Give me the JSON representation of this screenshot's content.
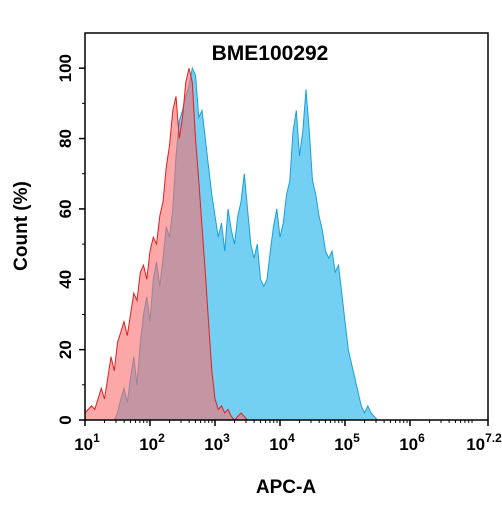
{
  "chart_data": {
    "type": "area",
    "title": "BME100292",
    "xlabel": "APC-A",
    "ylabel": "Count  (%)",
    "x_scale": "log10",
    "xlim": [
      1,
      7.2
    ],
    "ylim": [
      0,
      110
    ],
    "x_ticks": [
      {
        "value": 1,
        "base": "10",
        "exp": "1"
      },
      {
        "value": 2,
        "base": "10",
        "exp": "2"
      },
      {
        "value": 3,
        "base": "10",
        "exp": "3"
      },
      {
        "value": 4,
        "base": "10",
        "exp": "4"
      },
      {
        "value": 5,
        "base": "10",
        "exp": "5"
      },
      {
        "value": 6,
        "base": "10",
        "exp": "6"
      },
      {
        "value": 7.2,
        "base": "10",
        "exp": "7.2"
      }
    ],
    "y_ticks": [
      "0",
      "20",
      "40",
      "60",
      "80",
      "100"
    ],
    "grid": false,
    "legend": "none",
    "series": [
      {
        "color": "#5bc8f0",
        "edge": "#1aa0d8",
        "points": [
          [
            1.45,
            0
          ],
          [
            1.5,
            2
          ],
          [
            1.55,
            6
          ],
          [
            1.6,
            9
          ],
          [
            1.65,
            5
          ],
          [
            1.7,
            12
          ],
          [
            1.75,
            18
          ],
          [
            1.8,
            10
          ],
          [
            1.85,
            22
          ],
          [
            1.9,
            30
          ],
          [
            1.95,
            35
          ],
          [
            2.0,
            28
          ],
          [
            2.05,
            40
          ],
          [
            2.1,
            45
          ],
          [
            2.15,
            38
          ],
          [
            2.2,
            46
          ],
          [
            2.25,
            55
          ],
          [
            2.3,
            52
          ],
          [
            2.35,
            60
          ],
          [
            2.4,
            75
          ],
          [
            2.45,
            85
          ],
          [
            2.5,
            88
          ],
          [
            2.55,
            92
          ],
          [
            2.6,
            95
          ],
          [
            2.65,
            100
          ],
          [
            2.7,
            98
          ],
          [
            2.75,
            86
          ],
          [
            2.8,
            88
          ],
          [
            2.85,
            80
          ],
          [
            2.9,
            72
          ],
          [
            2.95,
            64
          ],
          [
            3.0,
            58
          ],
          [
            3.05,
            52
          ],
          [
            3.1,
            56
          ],
          [
            3.15,
            48
          ],
          [
            3.2,
            60
          ],
          [
            3.25,
            54
          ],
          [
            3.3,
            50
          ],
          [
            3.35,
            58
          ],
          [
            3.4,
            62
          ],
          [
            3.45,
            70
          ],
          [
            3.5,
            60
          ],
          [
            3.55,
            50
          ],
          [
            3.6,
            46
          ],
          [
            3.65,
            50
          ],
          [
            3.7,
            40
          ],
          [
            3.75,
            38
          ],
          [
            3.8,
            40
          ],
          [
            3.85,
            48
          ],
          [
            3.9,
            55
          ],
          [
            3.95,
            60
          ],
          [
            4.0,
            52
          ],
          [
            4.05,
            56
          ],
          [
            4.1,
            64
          ],
          [
            4.15,
            68
          ],
          [
            4.2,
            82
          ],
          [
            4.25,
            88
          ],
          [
            4.3,
            75
          ],
          [
            4.35,
            82
          ],
          [
            4.4,
            94
          ],
          [
            4.45,
            82
          ],
          [
            4.5,
            68
          ],
          [
            4.55,
            64
          ],
          [
            4.6,
            58
          ],
          [
            4.65,
            54
          ],
          [
            4.7,
            48
          ],
          [
            4.75,
            46
          ],
          [
            4.8,
            48
          ],
          [
            4.85,
            42
          ],
          [
            4.9,
            44
          ],
          [
            4.95,
            36
          ],
          [
            5.0,
            28
          ],
          [
            5.05,
            20
          ],
          [
            5.1,
            16
          ],
          [
            5.15,
            12
          ],
          [
            5.2,
            8
          ],
          [
            5.25,
            4
          ],
          [
            5.3,
            2
          ],
          [
            5.35,
            4
          ],
          [
            5.4,
            2
          ],
          [
            5.5,
            0
          ]
        ]
      },
      {
        "color": "#fa6e6e",
        "edge": "#e02020",
        "points": [
          [
            1.0,
            2
          ],
          [
            1.05,
            3
          ],
          [
            1.1,
            4
          ],
          [
            1.15,
            3
          ],
          [
            1.2,
            6
          ],
          [
            1.25,
            9
          ],
          [
            1.3,
            6
          ],
          [
            1.35,
            12
          ],
          [
            1.4,
            18
          ],
          [
            1.45,
            14
          ],
          [
            1.5,
            22
          ],
          [
            1.55,
            25
          ],
          [
            1.6,
            28
          ],
          [
            1.65,
            24
          ],
          [
            1.7,
            30
          ],
          [
            1.75,
            36
          ],
          [
            1.8,
            34
          ],
          [
            1.85,
            42
          ],
          [
            1.9,
            44
          ],
          [
            1.95,
            40
          ],
          [
            2.0,
            48
          ],
          [
            2.05,
            52
          ],
          [
            2.1,
            50
          ],
          [
            2.15,
            58
          ],
          [
            2.2,
            62
          ],
          [
            2.25,
            72
          ],
          [
            2.3,
            78
          ],
          [
            2.35,
            88
          ],
          [
            2.4,
            92
          ],
          [
            2.45,
            80
          ],
          [
            2.5,
            86
          ],
          [
            2.55,
            96
          ],
          [
            2.6,
            100
          ],
          [
            2.65,
            96
          ],
          [
            2.7,
            80
          ],
          [
            2.75,
            68
          ],
          [
            2.8,
            55
          ],
          [
            2.85,
            42
          ],
          [
            2.9,
            28
          ],
          [
            2.95,
            14
          ],
          [
            3.0,
            6
          ],
          [
            3.05,
            3
          ],
          [
            3.1,
            4
          ],
          [
            3.15,
            2
          ],
          [
            3.2,
            3
          ],
          [
            3.25,
            1
          ],
          [
            3.3,
            0
          ],
          [
            3.4,
            2
          ],
          [
            3.5,
            0
          ]
        ]
      }
    ]
  }
}
